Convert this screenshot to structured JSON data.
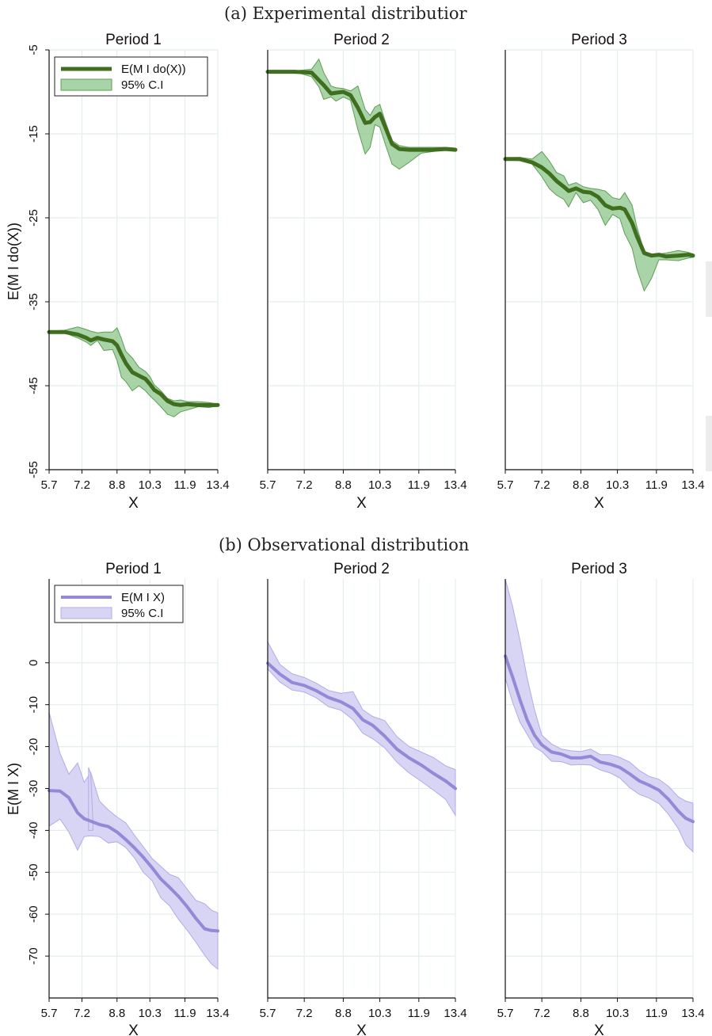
{
  "captions": {
    "a": "(a) Experimental distributior",
    "b": "(b) Observational distribution"
  },
  "colors": {
    "green_line": "#3f6e1f",
    "green_band": "#8cc68a",
    "green_band_edge": "#5f9e55",
    "purple_line": "#9389d6",
    "purple_band": "#d8d4f3",
    "purple_band_edge": "#b3abe6",
    "grid": "#e3eeec",
    "axis": "#111111"
  },
  "chart_data": [
    {
      "id": "experimental",
      "type": "line",
      "ylabel": "E(M I do(X))",
      "xlabel": "X",
      "xlim": [
        5.7,
        13.4
      ],
      "ylim": [
        -55,
        -5
      ],
      "yticks": [
        -5,
        -15,
        -25,
        -35,
        -45,
        -55
      ],
      "xticks": [
        5.7,
        7.2,
        8.8,
        10.3,
        11.9,
        13.4
      ],
      "xtick_labels": [
        "5.7",
        "7.2",
        "8.8",
        "10.3",
        "11.9",
        "13.4"
      ],
      "grid": true,
      "legend": {
        "placement": "top-left",
        "entries": [
          "E(M I do(X))",
          "95% C.I"
        ]
      },
      "panels": [
        {
          "title": "Period 1",
          "x": [
            5.7,
            6.4,
            7.0,
            7.4,
            7.6,
            7.9,
            8.2,
            8.6,
            8.8,
            9.0,
            9.2,
            9.5,
            9.8,
            10.1,
            10.3,
            10.5,
            10.8,
            11.1,
            11.4,
            11.7,
            12.0,
            12.5,
            13.0,
            13.4
          ],
          "mean": [
            -38.6,
            -38.6,
            -38.9,
            -39.3,
            -39.6,
            -39.3,
            -39.5,
            -39.7,
            -40.2,
            -41.3,
            -42.3,
            -43.4,
            -43.8,
            -44.2,
            -44.8,
            -45.5,
            -46.0,
            -46.8,
            -47.2,
            -47.3,
            -47.2,
            -47.3,
            -47.3,
            -47.3
          ],
          "lower": [
            -38.6,
            -38.7,
            -39.3,
            -39.8,
            -40.2,
            -39.6,
            -40.8,
            -40.7,
            -42.0,
            -44.0,
            -44.5,
            -45.6,
            -45.0,
            -45.6,
            -46.2,
            -46.7,
            -47.5,
            -48.4,
            -48.7,
            -48.1,
            -47.9,
            -47.5,
            -47.6,
            -47.4
          ],
          "upper": [
            -38.5,
            -38.4,
            -38.0,
            -38.3,
            -38.5,
            -38.7,
            -38.6,
            -38.6,
            -38.1,
            -39.4,
            -40.9,
            -41.7,
            -42.8,
            -43.3,
            -43.9,
            -44.9,
            -45.6,
            -46.5,
            -46.8,
            -46.7,
            -46.9,
            -46.9,
            -47.0,
            -47.2
          ]
        },
        {
          "title": "Period 2",
          "x": [
            5.7,
            6.8,
            7.5,
            7.8,
            8.0,
            8.3,
            8.5,
            8.8,
            9.1,
            9.4,
            9.7,
            9.9,
            10.1,
            10.3,
            10.5,
            10.8,
            11.1,
            11.5,
            12.0,
            12.5,
            13.0,
            13.4
          ],
          "mean": [
            -7.6,
            -7.6,
            -7.7,
            -8.6,
            -9.2,
            -10.2,
            -10.1,
            -10.0,
            -10.4,
            -11.9,
            -13.7,
            -13.6,
            -13.0,
            -12.6,
            -14.0,
            -16.2,
            -16.8,
            -16.9,
            -16.9,
            -16.9,
            -16.8,
            -16.9
          ],
          "lower": [
            -7.6,
            -7.6,
            -8.2,
            -9.4,
            -10.9,
            -10.6,
            -11.1,
            -10.6,
            -11.0,
            -14.5,
            -17.4,
            -16.6,
            -13.9,
            -14.2,
            -16.0,
            -18.6,
            -19.2,
            -18.4,
            -17.3,
            -17.1,
            -16.9,
            -17.0
          ],
          "upper": [
            -7.5,
            -7.5,
            -7.3,
            -6.1,
            -7.7,
            -9.3,
            -9.5,
            -9.6,
            -9.9,
            -9.3,
            -12.1,
            -12.8,
            -11.8,
            -11.5,
            -13.3,
            -15.8,
            -16.4,
            -16.6,
            -16.6,
            -16.6,
            -16.6,
            -16.7
          ]
        },
        {
          "title": "Period 3",
          "x": [
            5.7,
            6.3,
            6.8,
            7.2,
            7.5,
            7.8,
            8.1,
            8.3,
            8.6,
            8.9,
            9.2,
            9.5,
            9.8,
            10.1,
            10.4,
            10.6,
            10.9,
            11.1,
            11.4,
            11.7,
            12.0,
            12.3,
            12.8,
            13.2,
            13.4
          ],
          "mean": [
            -18.0,
            -18.0,
            -18.4,
            -19.0,
            -19.7,
            -20.6,
            -21.3,
            -21.8,
            -21.5,
            -21.9,
            -22.0,
            -22.5,
            -23.5,
            -23.9,
            -23.8,
            -24.0,
            -25.6,
            -27.2,
            -29.2,
            -29.5,
            -29.4,
            -29.6,
            -29.5,
            -29.4,
            -29.5
          ],
          "lower": [
            -18.1,
            -18.2,
            -18.6,
            -20.1,
            -21.5,
            -22.3,
            -22.8,
            -23.7,
            -22.0,
            -23.2,
            -22.9,
            -24.0,
            -25.9,
            -24.6,
            -25.1,
            -26.9,
            -28.6,
            -31.1,
            -33.7,
            -32.2,
            -30.0,
            -30.0,
            -30.1,
            -29.8,
            -29.7
          ],
          "upper": [
            -17.9,
            -17.8,
            -18.0,
            -17.1,
            -18.2,
            -19.6,
            -20.0,
            -21.1,
            -20.8,
            -21.3,
            -21.5,
            -21.6,
            -21.8,
            -22.6,
            -22.8,
            -22.0,
            -23.5,
            -26.1,
            -29.0,
            -29.3,
            -29.3,
            -29.2,
            -28.9,
            -29.1,
            -29.3
          ]
        }
      ]
    },
    {
      "id": "observational",
      "type": "line",
      "ylabel": "E(M I X)",
      "xlabel": "X",
      "xlim": [
        5.7,
        13.4
      ],
      "ylim": [
        -80,
        20
      ],
      "yticks": [
        0,
        -10,
        -20,
        -30,
        -40,
        -50,
        -60,
        -70
      ],
      "xticks": [
        5.7,
        7.2,
        8.8,
        10.3,
        11.9,
        13.4
      ],
      "xtick_labels": [
        "5.7",
        "7.2",
        "8.8",
        "10.3",
        "11.9",
        "13.4"
      ],
      "grid": true,
      "legend": {
        "placement": "top-left",
        "entries": [
          "E(M I X)",
          "95% C.I"
        ]
      },
      "panels": [
        {
          "title": "Period 1",
          "x": [
            5.7,
            6.2,
            6.6,
            7.0,
            7.3,
            7.6,
            8.0,
            8.4,
            8.8,
            9.2,
            9.6,
            10.0,
            10.4,
            10.8,
            11.2,
            11.6,
            12.0,
            12.4,
            12.8,
            13.1,
            13.4
          ],
          "mean": [
            -30.5,
            -30.6,
            -32.2,
            -35.8,
            -37.2,
            -37.8,
            -38.6,
            -39.1,
            -40.4,
            -42.2,
            -44.2,
            -46.4,
            -48.9,
            -51.6,
            -53.6,
            -55.7,
            -58.2,
            -61.0,
            -63.5,
            -63.9,
            -64.0
          ],
          "lower": [
            -39.0,
            -37.3,
            -40.4,
            -44.7,
            -41.5,
            -41.3,
            -41.5,
            -43.0,
            -42.7,
            -44.1,
            -46.6,
            -50.0,
            -52.0,
            -56.1,
            -58.0,
            -61.2,
            -63.8,
            -66.7,
            -69.8,
            -71.8,
            -73.1
          ],
          "upper": [
            -11.8,
            -21.6,
            -26.6,
            -23.9,
            -28.5,
            -26.2,
            -33.0,
            -35.1,
            -36.8,
            -38.2,
            -41.2,
            -43.9,
            -46.7,
            -48.6,
            -50.5,
            -51.3,
            -54.0,
            -56.7,
            -57.5,
            -59.0,
            -59.7
          ],
          "ci_spike": {
            "x": [
              7.5,
              7.6,
              7.7
            ],
            "upper": [
              -25.0,
              -26.5,
              -38.0
            ]
          }
        },
        {
          "title": "Period 2",
          "x": [
            5.7,
            6.2,
            6.7,
            7.2,
            7.7,
            8.2,
            8.7,
            9.2,
            9.6,
            10.0,
            10.5,
            11.0,
            11.5,
            12.0,
            12.5,
            13.0,
            13.4
          ],
          "mean": [
            -0.1,
            -2.7,
            -4.7,
            -5.4,
            -6.7,
            -8.3,
            -9.3,
            -10.9,
            -13.6,
            -14.9,
            -17.5,
            -20.6,
            -22.7,
            -24.4,
            -26.4,
            -28.2,
            -30.0
          ],
          "lower": [
            -1.5,
            -4.6,
            -6.5,
            -7.0,
            -8.4,
            -10.5,
            -11.3,
            -13.6,
            -16.8,
            -18.1,
            -20.3,
            -23.7,
            -26.3,
            -28.3,
            -30.4,
            -32.6,
            -36.4
          ],
          "upper": [
            5.0,
            -0.4,
            -2.6,
            -3.5,
            -4.9,
            -6.6,
            -7.3,
            -6.9,
            -11.2,
            -12.8,
            -13.8,
            -17.6,
            -20.0,
            -21.3,
            -22.6,
            -24.6,
            -25.5
          ]
        },
        {
          "title": "Period 3",
          "x": [
            5.7,
            6.0,
            6.3,
            6.6,
            6.9,
            7.2,
            7.6,
            8.0,
            8.4,
            8.8,
            9.2,
            9.6,
            10.0,
            10.4,
            10.8,
            11.2,
            11.6,
            12.0,
            12.4,
            12.8,
            13.1,
            13.4
          ],
          "mean": [
            1.6,
            -3.4,
            -8.8,
            -13.7,
            -17.3,
            -19.6,
            -21.3,
            -21.8,
            -22.7,
            -22.7,
            -22.3,
            -23.7,
            -24.2,
            -25.0,
            -26.5,
            -28.2,
            -29.2,
            -30.4,
            -32.6,
            -35.4,
            -37.1,
            -37.9
          ],
          "lower": [
            -3.7,
            -9.4,
            -14.2,
            -17.1,
            -20.1,
            -21.2,
            -23.5,
            -23.6,
            -24.4,
            -24.3,
            -24.4,
            -25.6,
            -26.3,
            -27.5,
            -29.8,
            -31.4,
            -32.3,
            -33.6,
            -36.2,
            -39.6,
            -43.4,
            -45.1
          ],
          "upper": [
            20.0,
            13.5,
            5.4,
            -3.7,
            -11.2,
            -17.3,
            -19.4,
            -20.6,
            -21.0,
            -21.2,
            -20.6,
            -21.9,
            -21.9,
            -22.6,
            -23.7,
            -25.7,
            -27.1,
            -27.8,
            -29.5,
            -32.0,
            -33.0,
            -33.5
          ]
        }
      ]
    }
  ]
}
